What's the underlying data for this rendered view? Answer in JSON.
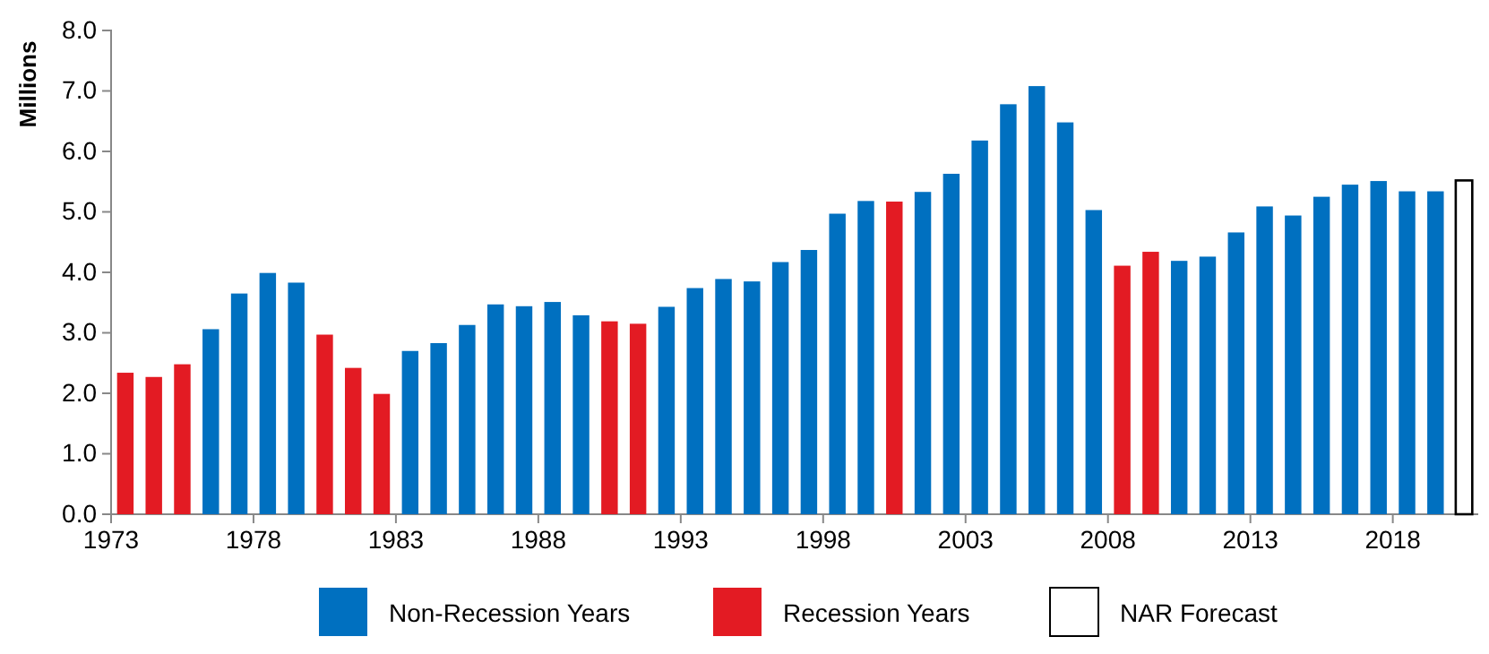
{
  "chart_data": {
    "type": "bar",
    "ylabel": "Millions",
    "legend": "bottom",
    "categories": [
      "1973",
      null,
      null,
      null,
      null,
      "1978",
      null,
      null,
      null,
      null,
      "1983",
      null,
      null,
      null,
      null,
      "1988",
      null,
      null,
      null,
      null,
      "1993",
      null,
      null,
      null,
      null,
      "1998",
      null,
      null,
      null,
      null,
      "2003",
      null,
      null,
      null,
      null,
      "2008",
      null,
      null,
      null,
      null,
      "2013",
      null,
      null,
      null,
      null,
      "2018",
      null,
      null
    ],
    "series": [
      {
        "name": "Non-Recession Years",
        "color": "#0070c0",
        "values": [
          null,
          null,
          null,
          3.06,
          3.65,
          3.99,
          3.83,
          null,
          null,
          null,
          2.7,
          2.83,
          3.13,
          3.47,
          3.44,
          3.51,
          3.29,
          null,
          null,
          3.43,
          3.74,
          3.89,
          3.85,
          4.17,
          4.37,
          4.97,
          5.18,
          null,
          5.33,
          5.63,
          6.18,
          6.78,
          7.08,
          6.48,
          5.03,
          null,
          null,
          4.19,
          4.26,
          4.66,
          5.09,
          4.94,
          5.25,
          5.45,
          5.51,
          5.34,
          5.34,
          null
        ]
      },
      {
        "name": "Recession Years",
        "color": "#e31b23",
        "values": [
          2.34,
          2.27,
          2.48,
          null,
          null,
          null,
          null,
          2.97,
          2.42,
          1.99,
          null,
          null,
          null,
          null,
          null,
          null,
          null,
          3.19,
          3.15,
          null,
          null,
          null,
          null,
          null,
          null,
          null,
          null,
          5.17,
          null,
          null,
          null,
          null,
          null,
          null,
          null,
          4.11,
          4.34,
          null,
          null,
          null,
          null,
          null,
          null,
          null,
          null,
          null,
          null,
          null
        ]
      },
      {
        "name": "NAR Forecast",
        "color": "#ffffff",
        "values": [
          null,
          null,
          null,
          null,
          null,
          null,
          null,
          null,
          null,
          null,
          null,
          null,
          null,
          null,
          null,
          null,
          null,
          null,
          null,
          null,
          null,
          null,
          null,
          null,
          null,
          null,
          null,
          null,
          null,
          null,
          null,
          null,
          null,
          null,
          null,
          null,
          null,
          null,
          null,
          null,
          null,
          null,
          null,
          null,
          null,
          null,
          null,
          5.52
        ]
      }
    ],
    "ylim": [
      0,
      8
    ],
    "yticks": [
      {
        "value": 0,
        "label": "0.0"
      },
      {
        "value": 1,
        "label": "1.0"
      },
      {
        "value": 2,
        "label": "2.0"
      },
      {
        "value": 3,
        "label": "3.0"
      },
      {
        "value": 4,
        "label": "4.0"
      },
      {
        "value": 5,
        "label": "5.0"
      },
      {
        "value": 6,
        "label": "6.0"
      },
      {
        "value": 7,
        "label": "7.0"
      },
      {
        "value": 8,
        "label": "8.0"
      }
    ]
  }
}
